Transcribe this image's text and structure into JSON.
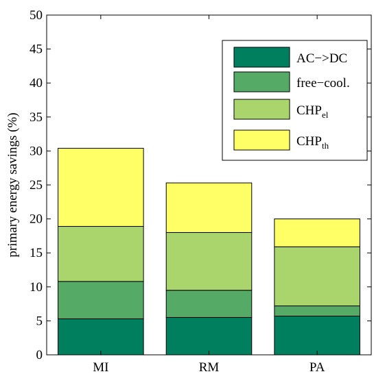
{
  "chart_data": {
    "type": "bar",
    "stacked": true,
    "categories": [
      "MI",
      "RM",
      "PA"
    ],
    "series": [
      {
        "name": "AC−>DC",
        "values": [
          5.3,
          5.5,
          5.7
        ],
        "color": "#007f5f"
      },
      {
        "name": "free−cool.",
        "values": [
          5.5,
          4.0,
          1.5
        ],
        "color": "#55aa66"
      },
      {
        "name": "CHP_el",
        "values": [
          8.1,
          8.5,
          8.7
        ],
        "color": "#aad46c"
      },
      {
        "name": "CHP_th",
        "values": [
          11.5,
          7.3,
          4.1
        ],
        "color": "#ffff66"
      }
    ],
    "legend_labels": [
      {
        "main": "AC−>DC",
        "sub": ""
      },
      {
        "main": "free−cool.",
        "sub": ""
      },
      {
        "main": "CHP",
        "sub": "el"
      },
      {
        "main": "CHP",
        "sub": "th"
      }
    ],
    "title": "",
    "xlabel": "",
    "ylabel": "primary energy savings (%)",
    "ylim": [
      0,
      50
    ],
    "yticks": [
      0,
      5,
      10,
      15,
      20,
      25,
      30,
      35,
      40,
      45,
      50
    ],
    "grid": false,
    "legend_position": "top-right"
  }
}
